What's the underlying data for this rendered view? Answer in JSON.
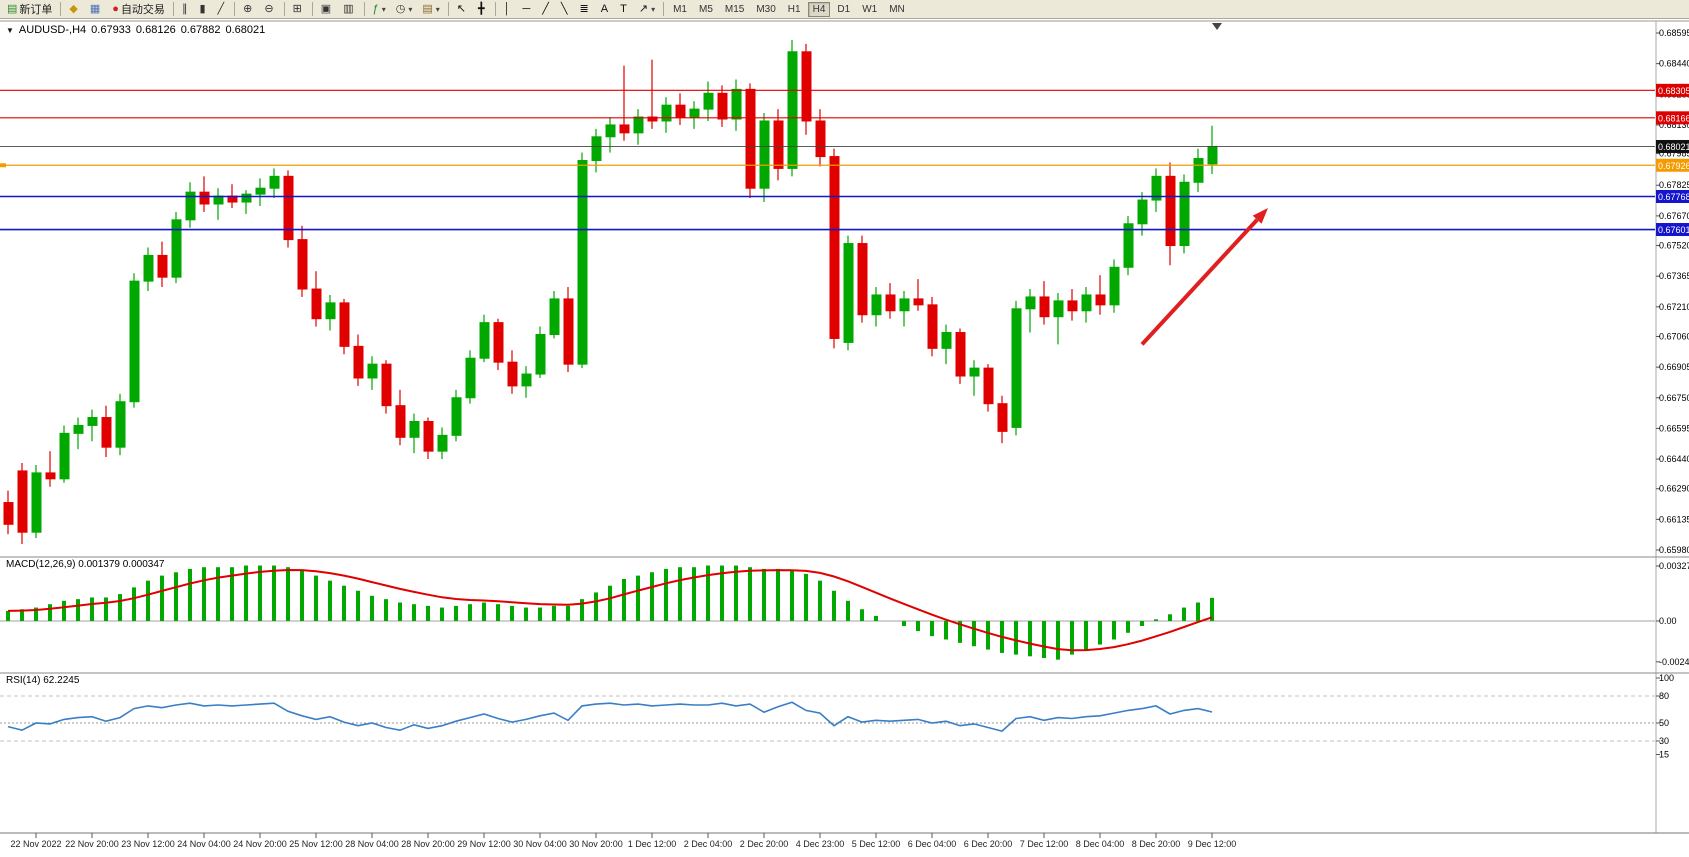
{
  "toolbar": {
    "groups": [
      [
        {
          "name": "new-order-button",
          "glyph": "▤",
          "glyph_color": "#2E8B2E",
          "label": "新订单"
        }
      ],
      [
        {
          "name": "market-watch-icon-button",
          "glyph": "◆",
          "glyph_color": "#C8960C"
        },
        {
          "name": "data-window-icon-button",
          "glyph": "▦",
          "glyph_color": "#4A6FB5"
        },
        {
          "name": "auto-trading-button",
          "glyph": "●",
          "glyph_color": "#CC2222",
          "label": "自动交易"
        }
      ],
      [
        {
          "name": "bar-chart-button",
          "glyph": "∥",
          "glyph_color": "#333333"
        },
        {
          "name": "candlestick-chart-button",
          "glyph": "▮",
          "glyph_color": "#333333"
        },
        {
          "name": "line-chart-button",
          "glyph": "╱",
          "glyph_color": "#333333"
        }
      ],
      [
        {
          "name": "zoom-in-button",
          "glyph": "⊕",
          "glyph_color": "#333333"
        },
        {
          "name": "zoom-out-button",
          "glyph": "⊖",
          "glyph_color": "#333333"
        }
      ],
      [
        {
          "name": "tile-windows-button",
          "glyph": "⊞",
          "glyph_color": "#333333"
        }
      ],
      [
        {
          "name": "auto-arrange-button",
          "glyph": "▣",
          "glyph_color": "#333333"
        },
        {
          "name": "chart-shift-button",
          "glyph": "▥",
          "glyph_color": "#333333"
        }
      ],
      [
        {
          "name": "indicators-button",
          "glyph": "ƒ",
          "glyph_color": "#1A8C1A",
          "dropdown": true
        },
        {
          "name": "periods-button",
          "glyph": "◷",
          "glyph_color": "#333333",
          "dropdown": true
        },
        {
          "name": "templates-button",
          "glyph": "▤",
          "glyph_color": "#8A6A2F",
          "dropdown": true
        }
      ],
      [
        {
          "name": "cursor-button",
          "glyph": "↖",
          "glyph_color": "#111111"
        },
        {
          "name": "crosshair-button",
          "glyph": "╋",
          "glyph_color": "#111111"
        }
      ],
      [
        {
          "name": "vertical-line-button",
          "glyph": "│",
          "glyph_color": "#111111"
        },
        {
          "name": "horizontal-line-button",
          "glyph": "─",
          "glyph_color": "#111111"
        },
        {
          "name": "trendline-button",
          "glyph": "╱",
          "glyph_color": "#111111"
        },
        {
          "name": "channel-button",
          "glyph": "╲",
          "glyph_color": "#111111"
        },
        {
          "name": "fibonacci-button",
          "glyph": "≣",
          "glyph_color": "#111111"
        },
        {
          "name": "text-button",
          "glyph": "A",
          "glyph_color": "#111111"
        },
        {
          "name": "label-button",
          "glyph": "T",
          "glyph_color": "#111111"
        },
        {
          "name": "arrows-button",
          "glyph": "↗",
          "glyph_color": "#111111",
          "dropdown": true
        }
      ]
    ],
    "timeframes": [
      "M1",
      "M5",
      "M15",
      "M30",
      "H1",
      "H4",
      "D1",
      "W1",
      "MN"
    ],
    "active_timeframe": "H4",
    "notification_count": "1"
  },
  "chart": {
    "menu_glyph": "▼",
    "symbol_period": "AUDUSD-,H4",
    "ohlc": {
      "open": "0.67933",
      "high": "0.68126",
      "low": "0.67882",
      "close": "0.68021"
    },
    "horizontal_lines": [
      {
        "price": 0.68305,
        "label": "0.68305",
        "color": "#DD0000",
        "width": 1.2
      },
      {
        "price": 0.68166,
        "label": "0.68166",
        "color": "#DD0000",
        "width": 1.2
      },
      {
        "price": 0.67926,
        "label": "0.67926",
        "color": "#F59B00",
        "width": 1.3
      },
      {
        "price": 0.67768,
        "label": "0.67768",
        "color": "#1515CC",
        "width": 1.6
      },
      {
        "price": 0.67601,
        "label": "0.67601",
        "color": "#1515CC",
        "width": 1.6
      }
    ],
    "current_price": {
      "price": 0.68021,
      "label": "0.68021",
      "color": "#111111"
    },
    "arrow": {
      "from_bar": 81,
      "from_price": 0.6702,
      "to_bar": 90,
      "to_price": 0.6771,
      "color": "#E02020"
    }
  },
  "chart_data": {
    "type": "candlestick",
    "symbol": "AUDUSD",
    "period": "H4",
    "up_color": "#00A800",
    "down_color": "#E00000",
    "price_range": {
      "max": 0.68595,
      "min": 0.6598
    },
    "price_axis_labels": [
      "0.68595",
      "0.68440",
      "0.68285",
      "0.68130",
      "0.67985",
      "0.67825",
      "0.67670",
      "0.67520",
      "0.67365",
      "0.67210",
      "0.67060",
      "0.66905",
      "0.66750",
      "0.66595",
      "0.66440",
      "0.66290",
      "0.66135",
      "0.65980"
    ],
    "time_axis_labels": [
      "22 Nov 2022",
      "22 Nov 20:00",
      "23 Nov 12:00",
      "24 Nov 04:00",
      "24 Nov 20:00",
      "25 Nov 12:00",
      "28 Nov 04:00",
      "28 Nov 20:00",
      "29 Nov 12:00",
      "30 Nov 04:00",
      "30 Nov 20:00",
      "1 Dec 12:00",
      "2 Dec 04:00",
      "2 Dec 20:00",
      "4 Dec 23:00",
      "5 Dec 12:00",
      "6 Dec 04:00",
      "6 Dec 20:00",
      "7 Dec 12:00",
      "8 Dec 04:00",
      "8 Dec 20:00",
      "9 Dec 12:00"
    ],
    "candles": [
      [
        0.6622,
        0.6628,
        0.6606,
        0.6611
      ],
      [
        0.6638,
        0.6642,
        0.6601,
        0.6607
      ],
      [
        0.6607,
        0.6641,
        0.6604,
        0.6637
      ],
      [
        0.6637,
        0.6648,
        0.663,
        0.6634
      ],
      [
        0.6634,
        0.6661,
        0.6632,
        0.6657
      ],
      [
        0.6657,
        0.6665,
        0.6649,
        0.6661
      ],
      [
        0.6661,
        0.6669,
        0.6653,
        0.6665
      ],
      [
        0.6665,
        0.6671,
        0.6645,
        0.665
      ],
      [
        0.665,
        0.6677,
        0.6646,
        0.6673
      ],
      [
        0.6673,
        0.6738,
        0.667,
        0.6734
      ],
      [
        0.6734,
        0.6751,
        0.6729,
        0.6747
      ],
      [
        0.6747,
        0.6754,
        0.6731,
        0.6736
      ],
      [
        0.6736,
        0.6769,
        0.6733,
        0.6765
      ],
      [
        0.6765,
        0.6784,
        0.6761,
        0.6779
      ],
      [
        0.6779,
        0.6787,
        0.6769,
        0.6773
      ],
      [
        0.6773,
        0.6781,
        0.6765,
        0.6777
      ],
      [
        0.6777,
        0.6783,
        0.6771,
        0.6774
      ],
      [
        0.6774,
        0.678,
        0.6768,
        0.6778
      ],
      [
        0.6778,
        0.6786,
        0.6772,
        0.6781
      ],
      [
        0.6781,
        0.6791,
        0.6776,
        0.6787
      ],
      [
        0.6787,
        0.679,
        0.6751,
        0.6755
      ],
      [
        0.6755,
        0.6762,
        0.6726,
        0.673
      ],
      [
        0.673,
        0.6739,
        0.6711,
        0.6715
      ],
      [
        0.6715,
        0.6727,
        0.6709,
        0.6723
      ],
      [
        0.6723,
        0.6725,
        0.6697,
        0.6701
      ],
      [
        0.6701,
        0.6707,
        0.6681,
        0.6685
      ],
      [
        0.6685,
        0.6696,
        0.6679,
        0.6692
      ],
      [
        0.6692,
        0.6694,
        0.6667,
        0.6671
      ],
      [
        0.6671,
        0.6679,
        0.6651,
        0.6655
      ],
      [
        0.6655,
        0.6667,
        0.6647,
        0.6663
      ],
      [
        0.6663,
        0.6665,
        0.6644,
        0.6648
      ],
      [
        0.6648,
        0.666,
        0.6644,
        0.6656
      ],
      [
        0.6656,
        0.6679,
        0.6653,
        0.6675
      ],
      [
        0.6675,
        0.6699,
        0.6672,
        0.6695
      ],
      [
        0.6695,
        0.6717,
        0.6693,
        0.6713
      ],
      [
        0.6713,
        0.6715,
        0.6689,
        0.6693
      ],
      [
        0.6693,
        0.6699,
        0.6677,
        0.6681
      ],
      [
        0.6681,
        0.6691,
        0.6675,
        0.6687
      ],
      [
        0.6687,
        0.6711,
        0.6685,
        0.6707
      ],
      [
        0.6707,
        0.6729,
        0.6705,
        0.6725
      ],
      [
        0.6725,
        0.6731,
        0.6688,
        0.6692
      ],
      [
        0.6692,
        0.6799,
        0.669,
        0.6795
      ],
      [
        0.6795,
        0.6811,
        0.6789,
        0.6807
      ],
      [
        0.6807,
        0.6817,
        0.6799,
        0.6813
      ],
      [
        0.6813,
        0.6843,
        0.6805,
        0.6809
      ],
      [
        0.6809,
        0.6821,
        0.6803,
        0.6817
      ],
      [
        0.6817,
        0.6846,
        0.6811,
        0.6815
      ],
      [
        0.6815,
        0.6827,
        0.6809,
        0.6823
      ],
      [
        0.6823,
        0.6829,
        0.6813,
        0.6817
      ],
      [
        0.6817,
        0.6825,
        0.6811,
        0.6821
      ],
      [
        0.6821,
        0.6835,
        0.6815,
        0.6829
      ],
      [
        0.6829,
        0.6833,
        0.6812,
        0.6816
      ],
      [
        0.6816,
        0.6836,
        0.681,
        0.6831
      ],
      [
        0.6831,
        0.6834,
        0.6776,
        0.6781
      ],
      [
        0.6781,
        0.6819,
        0.6774,
        0.6815
      ],
      [
        0.6815,
        0.6821,
        0.6785,
        0.6791
      ],
      [
        0.6791,
        0.6856,
        0.6787,
        0.685
      ],
      [
        0.685,
        0.6854,
        0.6808,
        0.6815
      ],
      [
        0.6815,
        0.6821,
        0.6792,
        0.6797
      ],
      [
        0.6797,
        0.6801,
        0.67,
        0.6705
      ],
      [
        0.6703,
        0.6757,
        0.6699,
        0.6753
      ],
      [
        0.6753,
        0.6757,
        0.6713,
        0.6717
      ],
      [
        0.6717,
        0.6731,
        0.6711,
        0.6727
      ],
      [
        0.6727,
        0.6733,
        0.6715,
        0.6719
      ],
      [
        0.6719,
        0.6729,
        0.6711,
        0.6725
      ],
      [
        0.6725,
        0.6735,
        0.6719,
        0.6722
      ],
      [
        0.6722,
        0.6726,
        0.6696,
        0.67
      ],
      [
        0.67,
        0.6712,
        0.6692,
        0.6708
      ],
      [
        0.6708,
        0.671,
        0.6682,
        0.6686
      ],
      [
        0.6686,
        0.6694,
        0.6676,
        0.669
      ],
      [
        0.669,
        0.6692,
        0.6668,
        0.6672
      ],
      [
        0.6672,
        0.6676,
        0.6652,
        0.6658
      ],
      [
        0.666,
        0.6724,
        0.6656,
        0.672
      ],
      [
        0.672,
        0.673,
        0.6708,
        0.6726
      ],
      [
        0.6726,
        0.6734,
        0.6712,
        0.6716
      ],
      [
        0.6716,
        0.6728,
        0.6702,
        0.6724
      ],
      [
        0.6724,
        0.673,
        0.6714,
        0.6719
      ],
      [
        0.6719,
        0.6731,
        0.6713,
        0.6727
      ],
      [
        0.6727,
        0.6737,
        0.6717,
        0.6722
      ],
      [
        0.6722,
        0.6745,
        0.6718,
        0.6741
      ],
      [
        0.6741,
        0.6767,
        0.6737,
        0.6763
      ],
      [
        0.6763,
        0.6779,
        0.6757,
        0.6775
      ],
      [
        0.6775,
        0.6791,
        0.6769,
        0.6787
      ],
      [
        0.6787,
        0.6794,
        0.6742,
        0.6752
      ],
      [
        0.6752,
        0.6788,
        0.6748,
        0.6784
      ],
      [
        0.6784,
        0.6801,
        0.6779,
        0.6796
      ],
      [
        0.67933,
        0.68126,
        0.67882,
        0.68021
      ]
    ],
    "macd": {
      "header": "MACD(12,26,9) 0.001379 0.000347",
      "axis_labels": [
        "0.003272",
        "0.00",
        "-0.002427"
      ],
      "axis_values": [
        0.003272,
        0,
        -0.002427
      ],
      "hist_color": "#00A800",
      "signal_color": "#E00000",
      "histogram": [
        0.0006,
        0.0007,
        0.0008,
        0.001,
        0.0012,
        0.0013,
        0.0014,
        0.0014,
        0.0016,
        0.002,
        0.0024,
        0.0027,
        0.0029,
        0.0031,
        0.0032,
        0.0032,
        0.0032,
        0.0033,
        0.0033,
        0.0033,
        0.0032,
        0.003,
        0.0027,
        0.0024,
        0.0021,
        0.0018,
        0.0015,
        0.0013,
        0.0011,
        0.001,
        0.0009,
        0.0008,
        0.0009,
        0.001,
        0.0011,
        0.001,
        0.0009,
        0.0008,
        0.0008,
        0.0009,
        0.0009,
        0.0013,
        0.0017,
        0.0021,
        0.0025,
        0.0027,
        0.0029,
        0.0031,
        0.0032,
        0.0032,
        0.0033,
        0.0033,
        0.0033,
        0.0032,
        0.0031,
        0.0031,
        0.003,
        0.0028,
        0.0024,
        0.0018,
        0.0012,
        0.0007,
        0.0003,
        0.0,
        -0.0003,
        -0.0006,
        -0.0009,
        -0.0011,
        -0.0013,
        -0.0015,
        -0.0017,
        -0.0019,
        -0.002,
        -0.0021,
        -0.0022,
        -0.0023,
        -0.002,
        -0.0017,
        -0.0014,
        -0.0011,
        -0.0007,
        -0.0003,
        0.0001,
        0.0004,
        0.0008,
        0.0011,
        0.001379
      ]
    },
    "rsi": {
      "header": "RSI(14) 62.2245",
      "axis_labels": [
        "100",
        "80",
        "50",
        "30",
        "15"
      ],
      "axis_values": [
        100,
        80,
        50,
        30,
        15
      ],
      "levels": [
        80,
        50,
        30
      ],
      "line_color": "#3A7EC6",
      "values": [
        46,
        42,
        50,
        49,
        54,
        56,
        57,
        52,
        56,
        66,
        69,
        67,
        70,
        72,
        69,
        70,
        69,
        70,
        71,
        72,
        63,
        58,
        54,
        57,
        51,
        47,
        50,
        45,
        42,
        48,
        44,
        47,
        52,
        56,
        60,
        55,
        51,
        54,
        58,
        61,
        53,
        69,
        71,
        72,
        70,
        71,
        69,
        70,
        71,
        70,
        70,
        72,
        69,
        71,
        62,
        68,
        73,
        64,
        61,
        47,
        57,
        51,
        53,
        52,
        53,
        54,
        50,
        52,
        47,
        49,
        45,
        41,
        55,
        57,
        53,
        56,
        55,
        57,
        58,
        61,
        64,
        66,
        69,
        60,
        64,
        66,
        62.2
      ]
    }
  }
}
